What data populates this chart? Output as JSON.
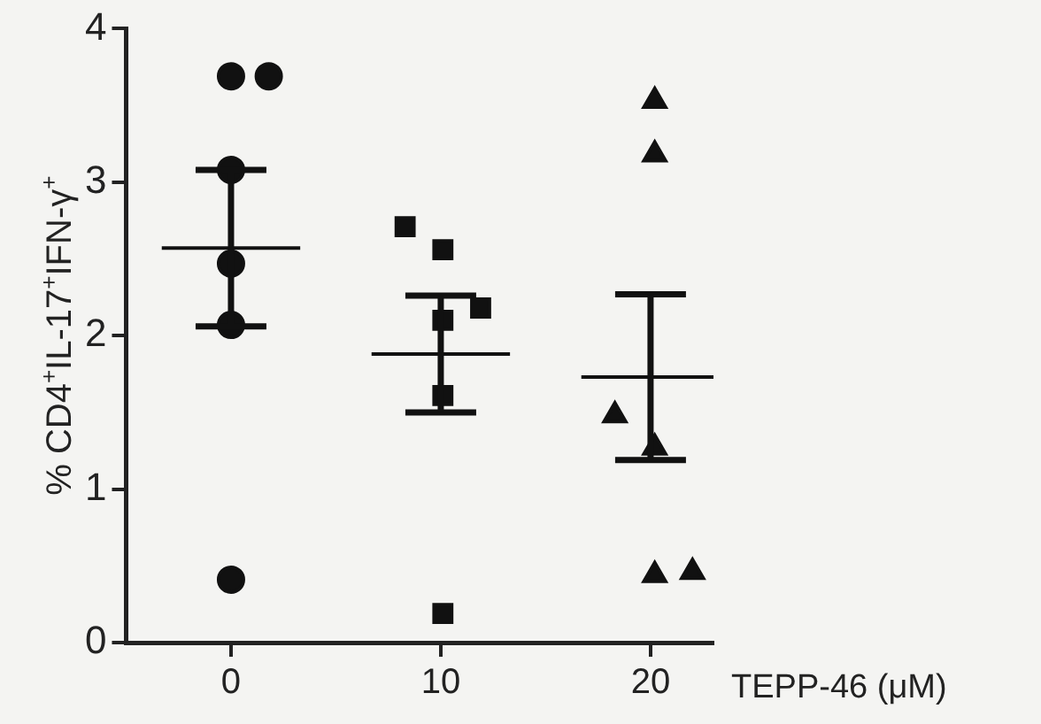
{
  "chart_data": {
    "type": "scatter",
    "xlabel": "TEPP-46 (μM)",
    "ylabel": "% CD4$^{+}$IL-17$^{+}$IFN-γ$^{+}$",
    "xlim": [
      -5,
      23
    ],
    "xticks": [
      0,
      10,
      20
    ],
    "ylim": [
      0,
      4
    ],
    "yticks": [
      0,
      1,
      2,
      3,
      4
    ],
    "grid": false,
    "legend": false,
    "series": [
      {
        "color": "#111111",
        "marker": "circle",
        "x": [
          0,
          1.8,
          0,
          0,
          0,
          0
        ],
        "values": [
          3.69,
          3.69,
          3.08,
          2.47,
          2.07,
          0.41
        ]
      },
      {
        "color": "#111111",
        "marker": "square",
        "x": [
          8.3,
          10.1,
          11.9,
          10.1,
          10.1,
          10.1
        ],
        "values": [
          2.71,
          2.56,
          2.18,
          2.1,
          1.61,
          0.19
        ]
      },
      {
        "color": "#111111",
        "marker": "triangle",
        "x": [
          20.2,
          20.2,
          18.3,
          20.2,
          20.2,
          22
        ],
        "values": [
          3.53,
          3.18,
          1.48,
          1.27,
          0.44,
          0.46
        ]
      },
      {
        "type": "line",
        "color": "#111111",
        "marker": "none",
        "x": [
          -3.3,
          0,
          3.3
        ],
        "values": [
          2.57,
          2.57,
          2.57
        ],
        "errors": [
          null,
          0.51,
          null
        ]
      },
      {
        "type": "line",
        "color": "#111111",
        "marker": "none",
        "x": [
          6.7,
          10,
          13.3
        ],
        "values": [
          1.88,
          1.88,
          1.88
        ],
        "errors": [
          null,
          0.38,
          null
        ]
      },
      {
        "type": "line",
        "color": "#111111",
        "marker": "none",
        "x": [
          16.7,
          20,
          23
        ],
        "values": [
          1.73,
          1.73,
          1.73
        ],
        "errors": [
          null,
          0.54,
          null
        ]
      }
    ]
  }
}
